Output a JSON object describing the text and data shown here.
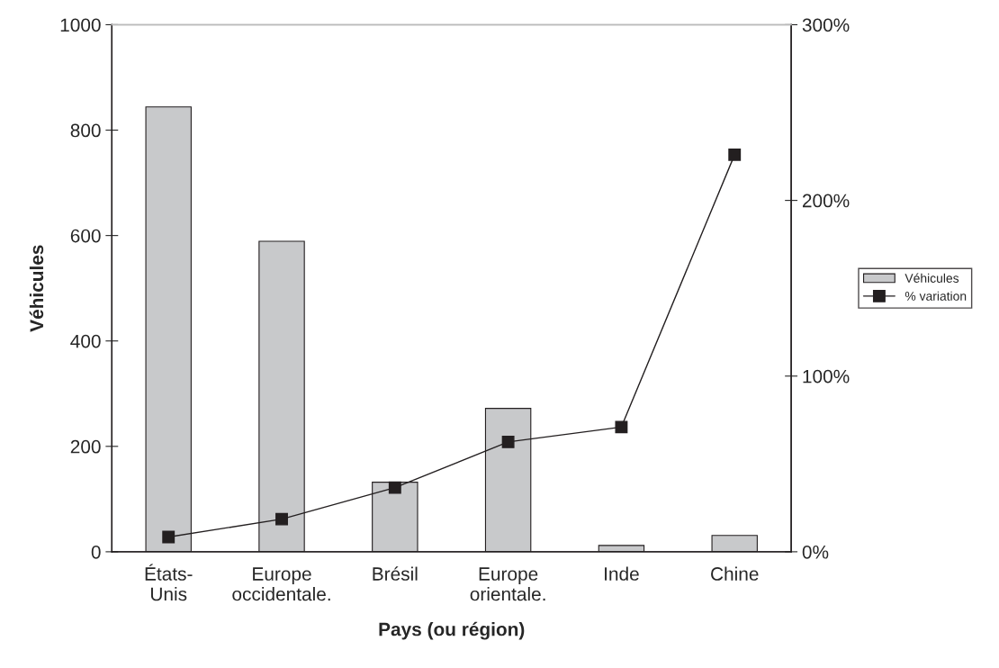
{
  "chart_data": {
    "type": "bar",
    "categories": [
      "États-\nUnis",
      "Europe\noccidentale.",
      "Brésil",
      "Europe\norientale.",
      "Inde",
      "Chine"
    ],
    "xlabel": "Pays (ou région)",
    "ylabel": "Véhicules",
    "series": [
      {
        "name": "Véhicules",
        "color": "#c8c9cb",
        "values": [
          844,
          589,
          132,
          272,
          12,
          31
        ]
      },
      {
        "name": "% variation",
        "type": "line",
        "axis": "y2",
        "color": "#231f20",
        "marker": "square",
        "values": [
          8.4,
          18.6,
          36.5,
          62.5,
          71,
          226
        ]
      }
    ],
    "ylim": [
      0,
      1000
    ],
    "yticks": [
      0,
      200,
      400,
      600,
      800,
      1000
    ],
    "y2lim": [
      0,
      300
    ],
    "y2ticks": [
      {
        "value": 0,
        "label": "0%"
      },
      {
        "value": 100,
        "label": "100%"
      },
      {
        "value": 200,
        "label": "200%"
      },
      {
        "value": 300,
        "label": "300%"
      }
    ],
    "grid": false,
    "legend": "right"
  }
}
